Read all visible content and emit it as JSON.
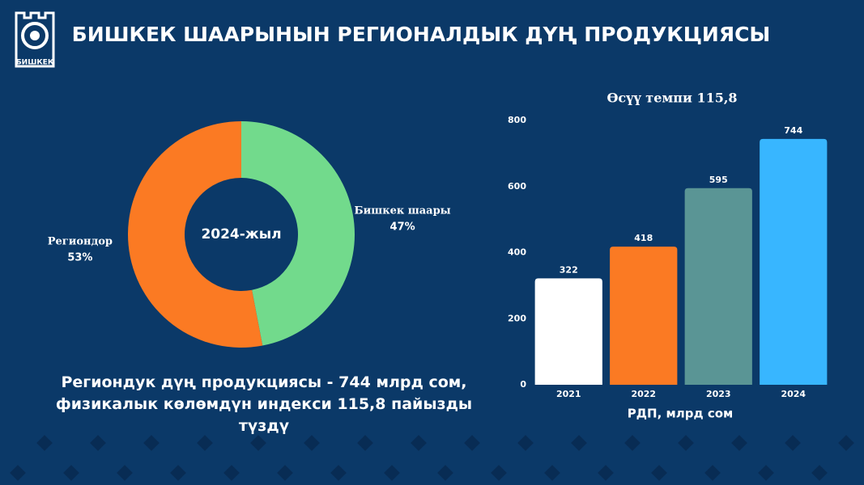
{
  "header": {
    "title": "БИШКЕК ШААРЫНЫН РЕГИОНАЛДЫК ДҮҢ ПРОДУКЦИЯСЫ",
    "logo_text": "БИШКЕК"
  },
  "chart_data": [
    {
      "type": "pie",
      "center_label": "2024-жыл",
      "categories": [
        "Бишкек шаары",
        "Региондор"
      ],
      "values": [
        47,
        53
      ],
      "value_labels": [
        "47%",
        "53%"
      ],
      "colors": [
        "#72da8c",
        "#fb7a23"
      ]
    },
    {
      "type": "bar",
      "title": "Өсүү темпи 115,8",
      "xlabel": "РДП, млрд сом",
      "categories": [
        "2021",
        "2022",
        "2023",
        "2024"
      ],
      "values": [
        322,
        418,
        595,
        744
      ],
      "colors": [
        "#ffffff",
        "#fb7a23",
        "#5a9595",
        "#38b6ff"
      ],
      "ylim": [
        0,
        800
      ],
      "yticks": [
        0,
        200,
        400,
        600,
        800
      ]
    }
  ],
  "caption": "Региондук дүң продукциясы - 744 млрд сом, физикалык көлөмдүн индекси 115,8 пайызды түздү"
}
